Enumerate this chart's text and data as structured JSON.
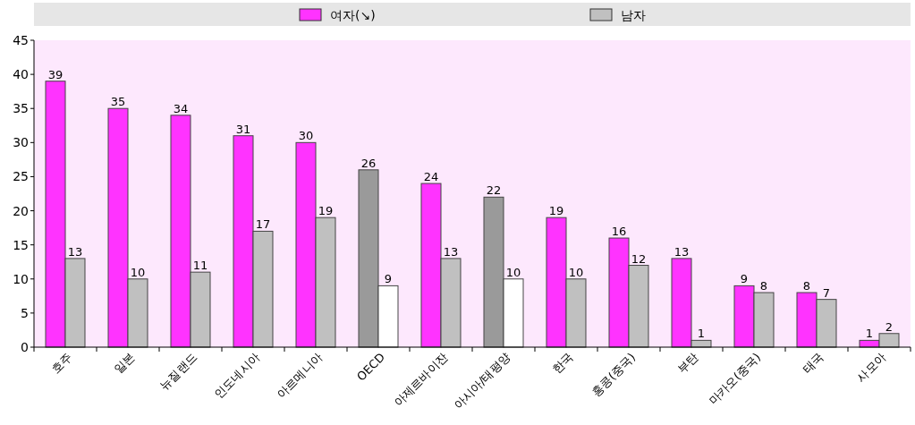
{
  "chart_data": {
    "type": "bar",
    "categories": [
      "호주",
      "일본",
      "뉴질랜드",
      "인도네시아",
      "아르메니아",
      "OECD",
      "아제르바이잔",
      "아시아/태평양",
      "한국",
      "홍콩(중국)",
      "부탄",
      "마카오(중국)",
      "태국",
      "사모아"
    ],
    "series": [
      {
        "name": "여자(↘)",
        "color": "#ff33ff",
        "colors": [
          "#ff33ff",
          "#ff33ff",
          "#ff33ff",
          "#ff33ff",
          "#ff33ff",
          "#9a9a9a",
          "#ff33ff",
          "#9a9a9a",
          "#ff33ff",
          "#ff33ff",
          "#ff33ff",
          "#ff33ff",
          "#ff33ff",
          "#ff33ff"
        ],
        "values": [
          39,
          35,
          34,
          31,
          30,
          26,
          24,
          22,
          19,
          16,
          13,
          9,
          8,
          1
        ]
      },
      {
        "name": "남자",
        "color": "#c0c0c0",
        "colors": [
          "#c0c0c0",
          "#c0c0c0",
          "#c0c0c0",
          "#c0c0c0",
          "#c0c0c0",
          "#ffffff",
          "#c0c0c0",
          "#ffffff",
          "#c0c0c0",
          "#c0c0c0",
          "#c0c0c0",
          "#c0c0c0",
          "#c0c0c0",
          "#c0c0c0"
        ],
        "values": [
          13,
          10,
          11,
          17,
          19,
          9,
          13,
          10,
          10,
          12,
          1,
          8,
          7,
          2
        ]
      }
    ],
    "ylim": [
      0,
      45
    ],
    "yticks": [
      0,
      5,
      10,
      15,
      20,
      25,
      30,
      35,
      40,
      45
    ],
    "data_labels": true,
    "legend": "top",
    "grid": false
  }
}
